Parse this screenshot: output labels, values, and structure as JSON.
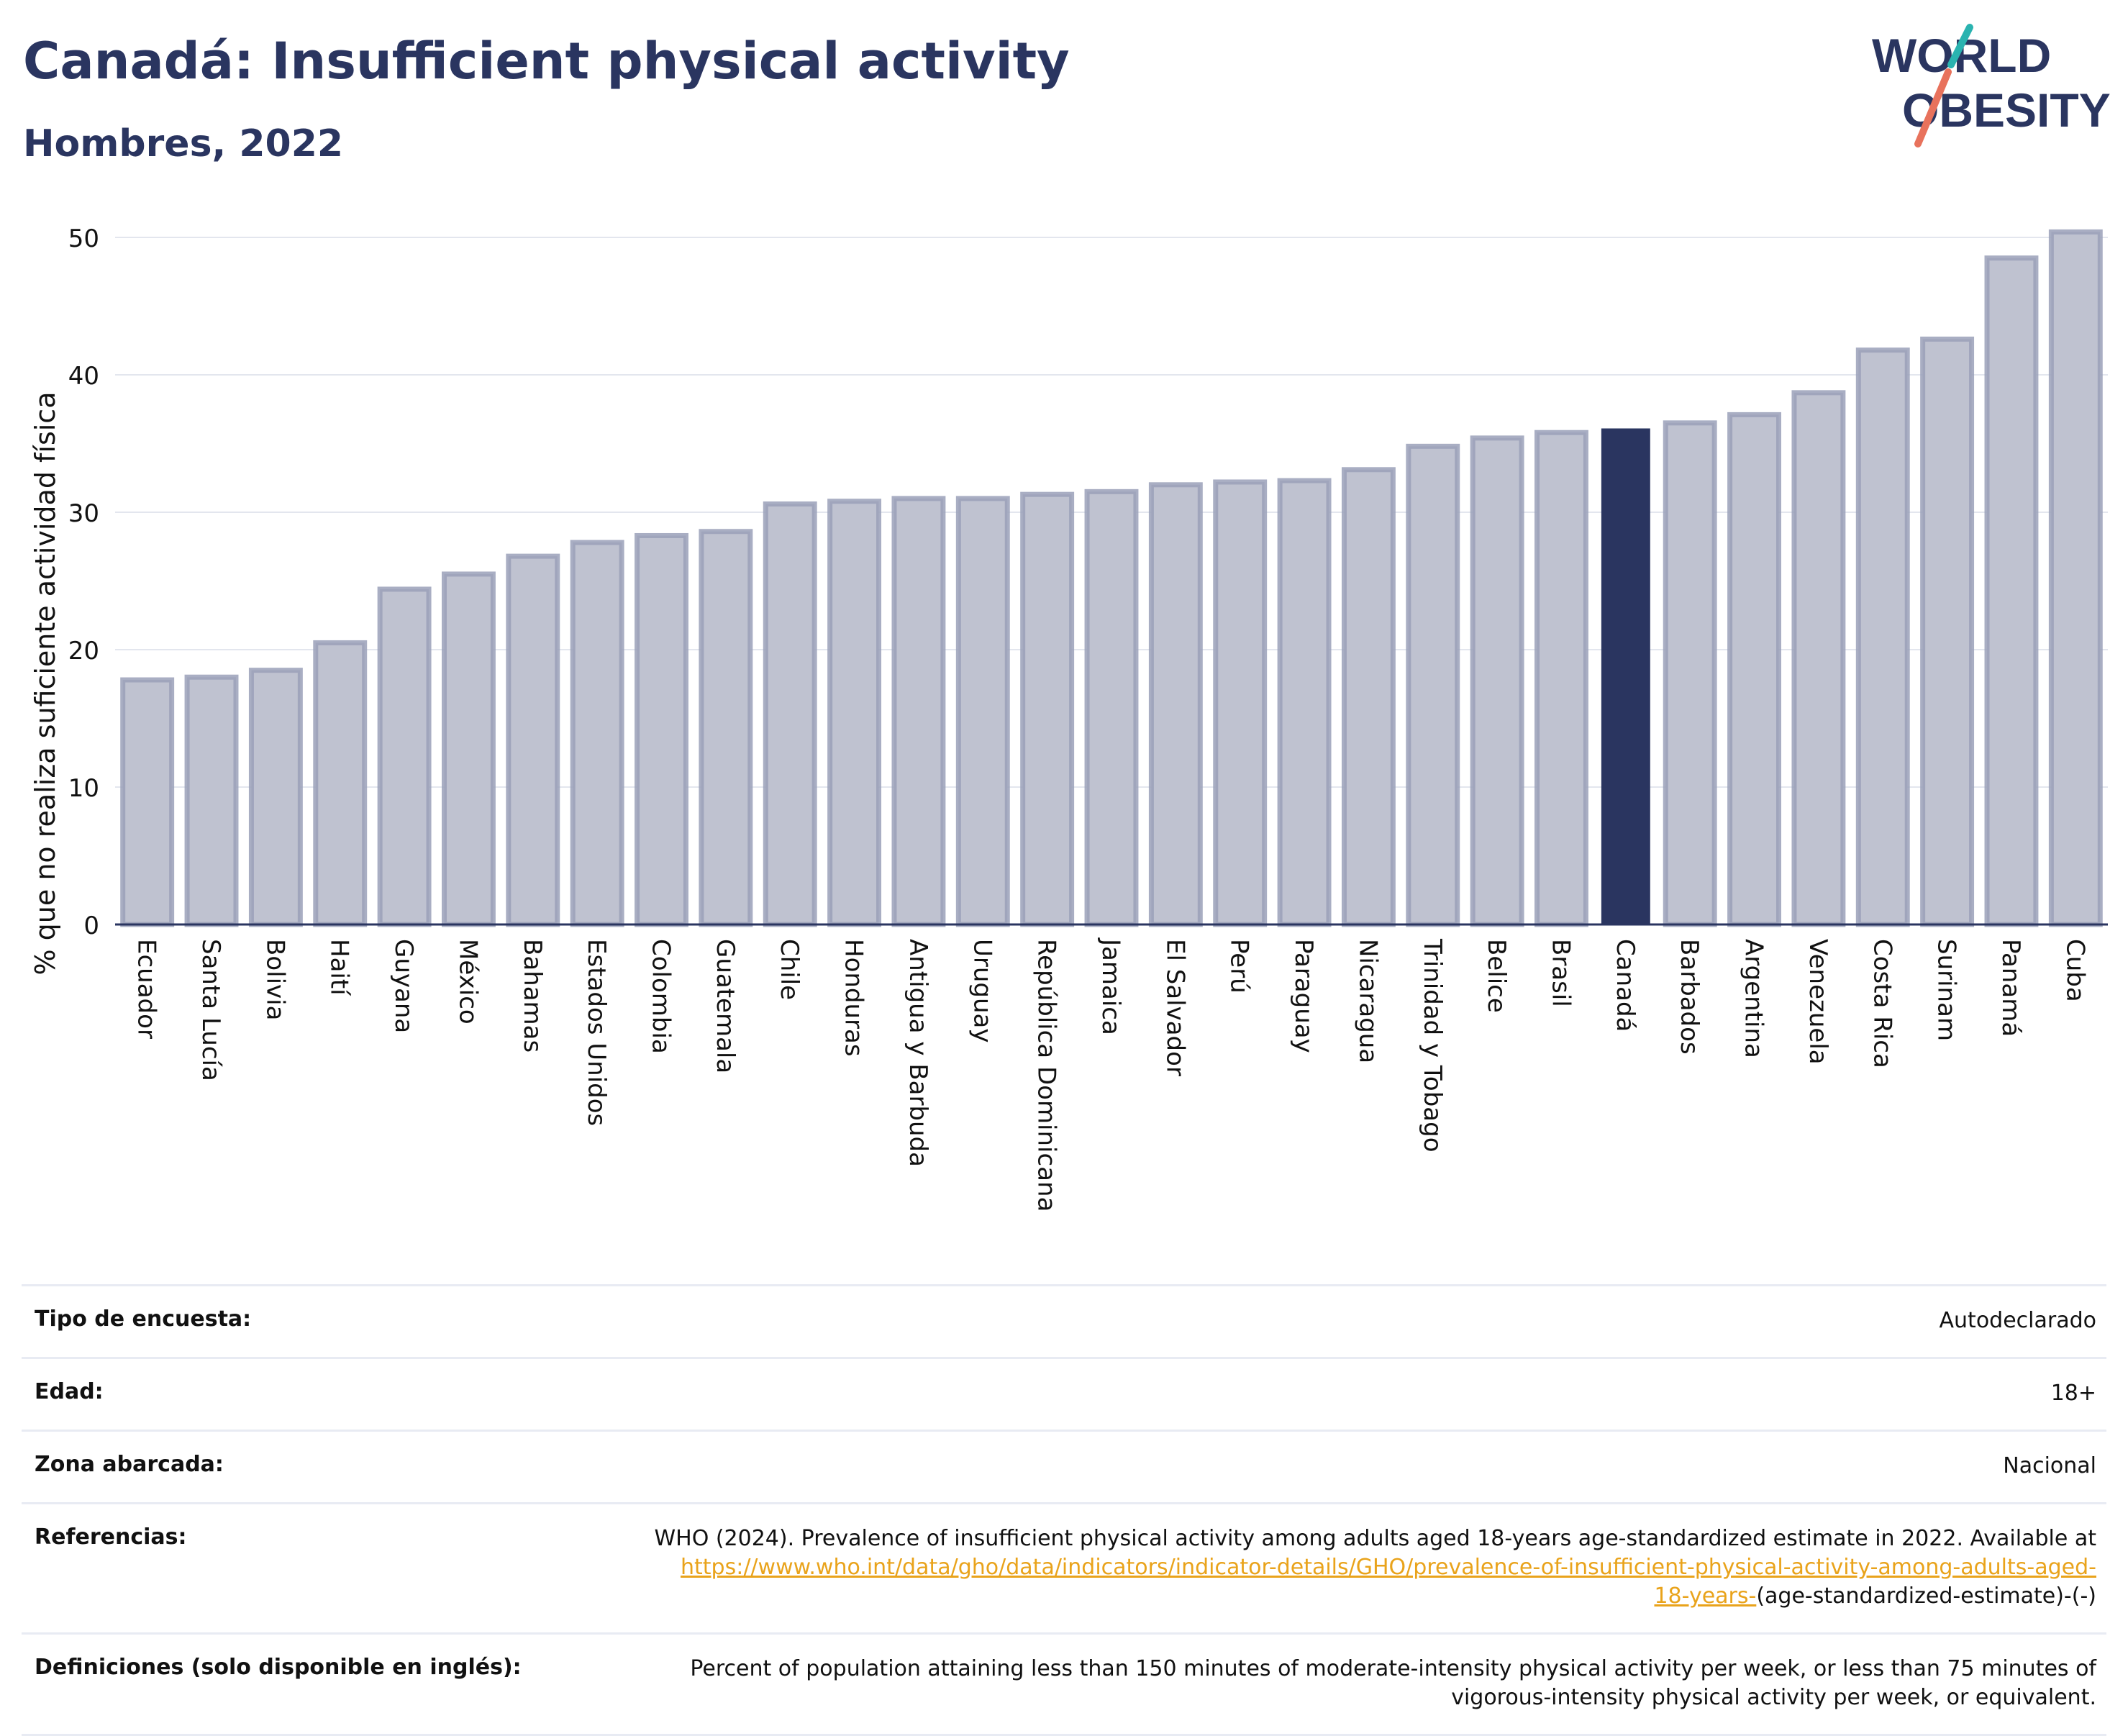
{
  "title": "Canadá: Insufficient physical activity",
  "subtitle": "Hombres, 2022",
  "logo": {
    "line1": "WORLD",
    "line2": "OBESITY",
    "colors": {
      "text": "#2a3560",
      "slash_teal": "#2ab3b0",
      "slash_coral": "#e8725c"
    }
  },
  "colors": {
    "bar": "#bfc2d0",
    "bar_stroke": "#9aa0b8",
    "highlight": "#2a3560",
    "axis_text": "#111111",
    "grid": "#e3e6ee"
  },
  "chart_data": {
    "type": "bar",
    "ylabel": "% que no realiza suficiente actividad física",
    "ylim": [
      0,
      50
    ],
    "yticks": [
      0,
      10,
      20,
      30,
      40,
      50
    ],
    "grid": true,
    "highlight": "Canadá",
    "categories": [
      "Ecuador",
      "Santa Lucía",
      "Bolivia",
      "Haití",
      "Guyana",
      "México",
      "Bahamas",
      "Estados Unidos",
      "Colombia",
      "Guatemala",
      "Chile",
      "Honduras",
      "Antigua y Barbuda",
      "Uruguay",
      "República Dominicana",
      "Jamaica",
      "El Salvador",
      "Perú",
      "Paraguay",
      "Nicaragua",
      "Trinidad y Tobago",
      "Belice",
      "Brasil",
      "Canadá",
      "Barbados",
      "Argentina",
      "Venezuela",
      "Costa Rica",
      "Surinam",
      "Panamá",
      "Cuba"
    ],
    "values": [
      17.8,
      18.0,
      18.5,
      20.5,
      24.4,
      25.5,
      26.8,
      27.8,
      28.3,
      28.6,
      30.6,
      30.8,
      31.0,
      31.0,
      31.3,
      31.5,
      32.0,
      32.2,
      32.3,
      33.1,
      34.8,
      35.4,
      35.8,
      36.1,
      36.5,
      37.1,
      38.7,
      41.8,
      42.6,
      48.5,
      50.4
    ]
  },
  "info": {
    "survey_label": "Tipo de encuesta:",
    "survey_value": "Autodeclarado",
    "age_label": "Edad:",
    "age_value": "18+",
    "area_label": "Zona abarcada:",
    "area_value": "Nacional",
    "ref_label": "Referencias:",
    "ref_text": "WHO (2024). Prevalence of insufficient physical activity among adults aged 18-years age-standardized estimate in 2022. Available at",
    "ref_link_1": "https://www.who.int/data/gho/data/indicators/indicator-details/GHO/prevalence-of-insufficient-physical-activity-among-adults-aged-",
    "ref_link_2": "18-years-",
    "ref_tail": "(age-standardized-estimate)-(-)",
    "def_label": "Definiciones (solo disponible en inglés):",
    "def_line_1": "Percent of population attaining less than 150 minutes of moderate-intensity physical activity per week, or less than 75 minutes of",
    "def_line_2": "vigorous-intensity physical activity per week, or equivalent."
  }
}
